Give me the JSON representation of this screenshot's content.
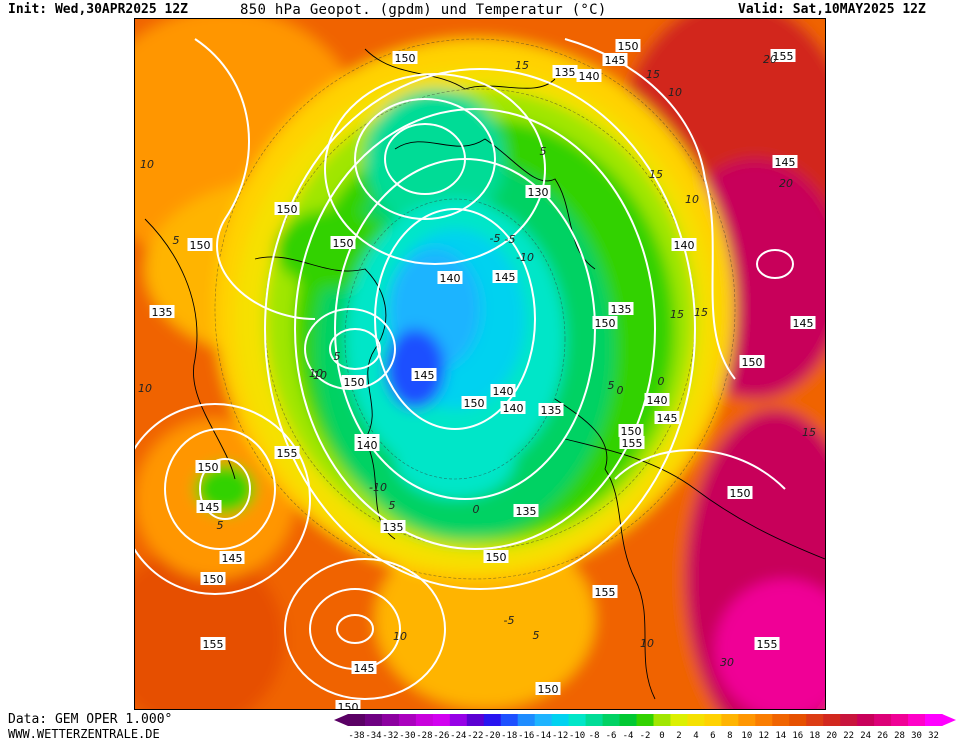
{
  "header": {
    "init": "Init: Wed,30APR2025 12Z",
    "title": "850 hPa Geopot. (gpdm) und Temperatur (°C)",
    "valid": "Valid: Sat,10MAY2025 12Z"
  },
  "footer": {
    "source": "Data: GEM OPER 1.000°",
    "website": "WWW.WETTERZENTRALE.DE"
  },
  "colors": {
    "c_m38": "#4b0052",
    "c_m34": "#6a007a",
    "c_m30": "#a000b4",
    "c_m26": "#c800dc",
    "c_m22": "#5a00d2",
    "c_m18": "#1e3cff",
    "c_m14": "#1e8cff",
    "c_m10": "#00c8e6",
    "c_m6": "#00dca0",
    "c_m2": "#00c800",
    "c_0": "#a0e600",
    "c_4": "#f0f000",
    "c_8": "#ffc800",
    "c_12": "#ff9600",
    "c_16": "#e65a00",
    "c_20": "#d21e1e",
    "c_24": "#c80050",
    "c_28": "#e6007a",
    "c_32": "#ff00ff"
  },
  "legend": {
    "labels": [
      "-38",
      "-34",
      "-32",
      "-30",
      "-28",
      "-26",
      "-24",
      "-22",
      "-20",
      "-18",
      "-16",
      "-14",
      "-12",
      "-10",
      "-8",
      "-6",
      "-4",
      "-2",
      "0",
      "2",
      "4",
      "6",
      "8",
      "10",
      "12",
      "14",
      "16",
      "18",
      "20",
      "22",
      "24",
      "26",
      "28",
      "30",
      "32"
    ],
    "colors": [
      "#5a0064",
      "#6e0082",
      "#8c00a0",
      "#aa00be",
      "#c800dc",
      "#d200f0",
      "#9600e6",
      "#5a00d2",
      "#2814f0",
      "#1e50ff",
      "#1e8cff",
      "#1eb4ff",
      "#00d2f0",
      "#00e6c8",
      "#00dc96",
      "#00d264",
      "#00c832",
      "#32d200",
      "#a0e600",
      "#dcf000",
      "#f5e100",
      "#ffd200",
      "#ffb400",
      "#ff9600",
      "#fa7d00",
      "#f06400",
      "#e65000",
      "#dc3c14",
      "#d2281e",
      "#c8143c",
      "#c8005a",
      "#dc0078",
      "#f00096",
      "#ff00c8",
      "#ff00ff"
    ]
  },
  "map_labels": {
    "geopot": [
      "150",
      "150",
      "145",
      "140",
      "135",
      "155",
      "150",
      "150",
      "150",
      "140",
      "145",
      "150",
      "145",
      "135",
      "140",
      "130",
      "145",
      "135",
      "140",
      "150",
      "155",
      "150",
      "140",
      "145",
      "135",
      "150",
      "140",
      "150",
      "145",
      "140",
      "135",
      "150",
      "140",
      "145",
      "150",
      "155",
      "155",
      "150",
      "145",
      "150",
      "155",
      "145",
      "150",
      "135",
      "150",
      "155"
    ],
    "temp": [
      "15",
      "15",
      "10",
      "20",
      "5",
      "10",
      "5",
      "-5",
      "15",
      "10",
      "-10",
      "-5",
      "15",
      "5",
      "10",
      "0",
      "5",
      "-10",
      "5",
      "0",
      "10",
      "10",
      "15",
      "20",
      "15",
      "5",
      "-5",
      "5",
      "0",
      "10",
      "10",
      "30"
    ]
  }
}
